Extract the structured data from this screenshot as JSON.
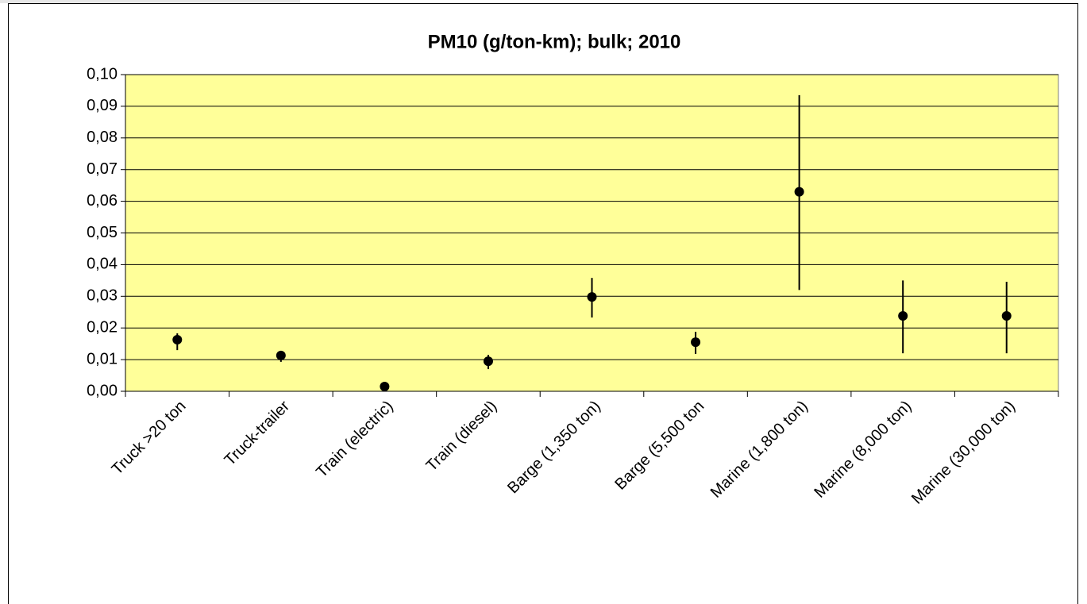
{
  "chart_data": {
    "type": "errorbar",
    "title": "PM10 (g/ton-km); bulk; 2010",
    "categories": [
      "Truck >20 ton",
      "Truck-trailer",
      "Train (electric)",
      "Train (diesel)",
      "Barge (1,350 ton)",
      "Barge (5,500 ton",
      "Marine (1,800 ton)",
      "Marine (8,000 ton)",
      "Marine (30,000 ton)"
    ],
    "values": [
      0.0163,
      0.0113,
      0.0015,
      0.0095,
      0.0298,
      0.0155,
      0.063,
      0.0238,
      0.0238
    ],
    "low": [
      0.013,
      0.0093,
      0.0008,
      0.007,
      0.0233,
      0.0118,
      0.032,
      0.012,
      0.012
    ],
    "high": [
      0.0183,
      0.0125,
      0.002,
      0.0115,
      0.0358,
      0.0188,
      0.0935,
      0.035,
      0.0346
    ],
    "color": "#000000",
    "plot_background": "#ffff99",
    "grid": true,
    "ylim": [
      0,
      0.1
    ],
    "yticks": [
      {
        "value": 0,
        "label": "0,00"
      },
      {
        "value": 0.01,
        "label": "0,01"
      },
      {
        "value": 0.02,
        "label": "0,02"
      },
      {
        "value": 0.03,
        "label": "0,03"
      },
      {
        "value": 0.04,
        "label": "0,04"
      },
      {
        "value": 0.05,
        "label": "0,05"
      },
      {
        "value": 0.06,
        "label": "0,06"
      },
      {
        "value": 0.07,
        "label": "0,07"
      },
      {
        "value": 0.08,
        "label": "0,08"
      },
      {
        "value": 0.09,
        "label": "0,09"
      },
      {
        "value": 0.1,
        "label": "0,10"
      }
    ]
  }
}
